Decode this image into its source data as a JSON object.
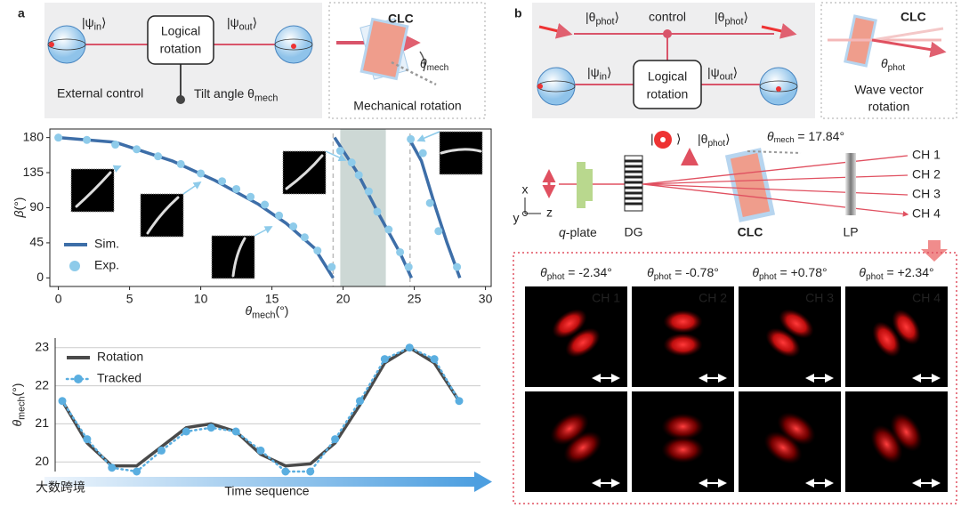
{
  "panel_a": {
    "label": "a",
    "schematic": {
      "ket_in": {
        "open": "|ψ",
        "sub": "in",
        "close": "⟩"
      },
      "ket_out": {
        "open": "|ψ",
        "sub": "out",
        "close": "⟩"
      },
      "box": [
        "Logical",
        "rotation"
      ],
      "external": "External control",
      "tilt": {
        "text": "Tilt angle θ",
        "sub": "mech"
      }
    },
    "inset": {
      "clc": "CLC",
      "angle": {
        "text": "θ",
        "sub": "mech"
      },
      "caption": "Mechanical rotation"
    }
  },
  "chart_data": [
    {
      "type": "line",
      "xlabel": "θ",
      "xlabel_sub": "mech",
      "xlabel_unit": "(°)",
      "ylabel": "β",
      "ylabel_unit": "(°)",
      "xlim": [
        -0.6,
        30.4
      ],
      "xticks": [
        0,
        5,
        10,
        15,
        20,
        25,
        30
      ],
      "ylim": [
        -11,
        191
      ],
      "yticks": [
        0,
        45,
        90,
        135,
        180
      ],
      "shaded_x": [
        19.8,
        23
      ],
      "dashed_x": [
        19.3,
        24.7
      ],
      "legend": "lower left",
      "series": [
        {
          "name": "Sim.",
          "color": "#3d6ea8",
          "style": "line",
          "x": [
            0,
            4,
            8,
            11,
            14,
            16,
            18,
            19.3,
            null,
            19.4,
            21,
            22.5,
            24,
            24.8,
            null,
            24.6,
            25.5,
            26.5,
            27.3,
            28.2
          ],
          "values": [
            180,
            174,
            150,
            125,
            95,
            70,
            38,
            0,
            null,
            180,
            135,
            82,
            32,
            0,
            null,
            180,
            150,
            90,
            45,
            0
          ]
        },
        {
          "name": "Exp.",
          "color": "#8ecbea",
          "style": "markers",
          "x": [
            0,
            2,
            4,
            5.5,
            7,
            8.6,
            10,
            11.5,
            12.5,
            13.5,
            14.5,
            15.5,
            16.5,
            17.3,
            18.2,
            19.2,
            19.8,
            20.6,
            21.1,
            21.8,
            22.4,
            23.2,
            24,
            24.6,
            24.75,
            25.6,
            26.1,
            26.7,
            28
          ],
          "values": [
            180,
            177,
            171,
            165,
            156,
            146,
            134,
            124,
            114,
            104,
            94,
            80,
            66,
            52,
            35,
            14,
            163,
            148,
            132,
            111,
            85,
            62,
            33,
            14,
            178,
            160,
            96,
            60,
            14
          ]
        }
      ]
    },
    {
      "type": "line",
      "xlabel": "Time sequence",
      "ylabel": "θ",
      "ylabel_sub": "mech",
      "ylabel_unit": "(°)",
      "categories": [
        null,
        null,
        null,
        null,
        null,
        null,
        null,
        null,
        null,
        null,
        null,
        null,
        null,
        null,
        null,
        null,
        null
      ],
      "ylim": [
        19.75,
        23.25
      ],
      "yticks": [
        20,
        21,
        22,
        23
      ],
      "grid": true,
      "legend": "upper left",
      "series": [
        {
          "name": "Rotation",
          "color": "#4a4a4a",
          "style": "line",
          "values": [
            21.6,
            20.5,
            19.9,
            19.9,
            20.4,
            20.9,
            21.0,
            20.8,
            20.2,
            19.9,
            19.95,
            20.5,
            21.5,
            22.6,
            23.0,
            22.6,
            21.6
          ]
        },
        {
          "name": "Tracked",
          "color": "#5aaee0",
          "style": "dotted-markers",
          "values": [
            21.6,
            20.6,
            19.85,
            19.75,
            20.3,
            20.8,
            20.9,
            20.8,
            20.3,
            19.75,
            19.75,
            20.6,
            21.6,
            22.7,
            23.0,
            22.7,
            21.6
          ]
        }
      ]
    }
  ],
  "panel_b": {
    "label": "b",
    "schematic": {
      "ket_phot": {
        "open": "|θ",
        "sub": "phot",
        "close": "⟩"
      },
      "control": "control",
      "ket_in": {
        "open": "|ψ",
        "sub": "in",
        "close": "⟩"
      },
      "ket_out": {
        "open": "|ψ",
        "sub": "out",
        "close": "⟩"
      },
      "box": [
        "Logical",
        "rotation"
      ]
    },
    "inset": {
      "clc": "CLC",
      "angle": {
        "text": "θ",
        "sub": "phot"
      },
      "caption": [
        "Wave vector",
        "rotation"
      ]
    },
    "setup": {
      "ket_left": "|",
      "ket_right": "⟩",
      "ket_phot": {
        "open": "|θ",
        "sub": "phot",
        "close": "⟩"
      },
      "mech_angle": {
        "text": "θ",
        "sub": "mech",
        "value": " = 17.84°"
      },
      "axes": [
        "x",
        "y",
        "z"
      ],
      "labels": {
        "qplate": {
          "italic": "q",
          "rest": "-plate"
        },
        "dg": "DG",
        "clc": "CLC",
        "lp": "LP"
      },
      "channels": [
        "CH 1",
        "CH 2",
        "CH 3",
        "CH 4"
      ]
    },
    "images": {
      "columns": [
        {
          "symbol": "θ",
          "sub": "phot",
          "value": " = -2.34°"
        },
        {
          "symbol": "θ",
          "sub": "phot",
          "value": " = -0.78°"
        },
        {
          "symbol": "θ",
          "sub": "phot",
          "value": " = +0.78°"
        },
        {
          "symbol": "θ",
          "sub": "phot",
          "value": " = +2.34°"
        }
      ]
    }
  },
  "watermark": "大数跨境"
}
